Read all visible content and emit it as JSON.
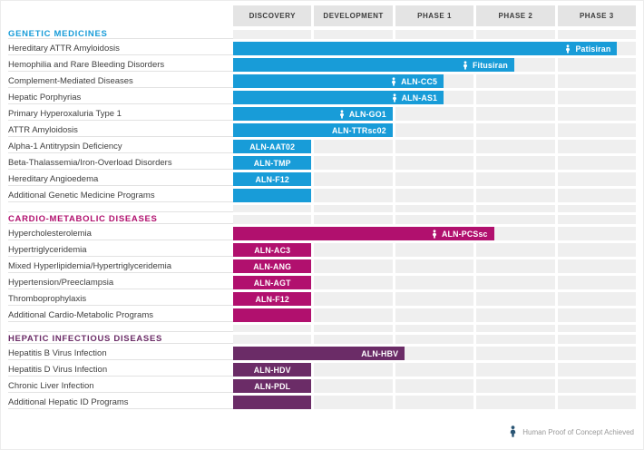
{
  "chart_data": {
    "type": "bar",
    "orientation": "horizontal",
    "title": "",
    "columns": [
      "DISCOVERY",
      "DEVELOPMENT",
      "PHASE 1",
      "PHASE 2",
      "PHASE 3"
    ],
    "legend": "Human Proof of Concept Achieved",
    "colors": {
      "genetic": "#189cd8",
      "cardio": "#b1106e",
      "hepatic": "#6b2c67",
      "legend_icon": "#2a5574",
      "header_bg": "#e4e4e4",
      "cell_bg": "#efefef"
    },
    "sections": [
      {
        "title": "GENETIC MEDICINES",
        "color": "#189cd8",
        "rows": [
          {
            "label": "Hereditary ATTR Amyloidosis",
            "program": "Patisiran",
            "phase_reached": "Phase 3",
            "end": 4.77,
            "poc": true
          },
          {
            "label": "Hemophilia and Rare Bleeding Disorders",
            "program": "Fitusiran",
            "phase_reached": "Phase 2",
            "end": 3.5,
            "poc": true
          },
          {
            "label": "Complement-Mediated Diseases",
            "program": "ALN-CC5",
            "phase_reached": "Phase 1",
            "end": 2.63,
            "poc": true
          },
          {
            "label": "Hepatic Porphyrias",
            "program": "ALN-AS1",
            "phase_reached": "Phase 1",
            "end": 2.63,
            "poc": true
          },
          {
            "label": "Primary Hyperoxaluria Type 1",
            "program": "ALN-GO1",
            "phase_reached": "Development",
            "end": 2.0,
            "poc": true
          },
          {
            "label": "ATTR Amyloidosis",
            "program": "ALN-TTRsc02",
            "phase_reached": "Development",
            "end": 2.0,
            "poc": false
          },
          {
            "label": "Alpha-1 Antitrypsin Deficiency",
            "program": "ALN-AAT02",
            "phase_reached": "Discovery",
            "end": 1.0,
            "poc": false,
            "center": true
          },
          {
            "label": "Beta-Thalassemia/Iron-Overload Disorders",
            "program": "ALN-TMP",
            "phase_reached": "Discovery",
            "end": 1.0,
            "poc": false,
            "center": true
          },
          {
            "label": "Hereditary Angioedema",
            "program": "ALN-F12",
            "phase_reached": "Discovery",
            "end": 1.0,
            "poc": false,
            "center": true
          },
          {
            "label": "Additional Genetic Medicine Programs",
            "program": "",
            "phase_reached": "Discovery",
            "end": 1.0,
            "poc": false
          }
        ]
      },
      {
        "title": "CARDIO-METABOLIC DISEASES",
        "color": "#b1106e",
        "rows": [
          {
            "label": "Hypercholesterolemia",
            "program": "ALN-PCSsc",
            "phase_reached": "Phase 2",
            "end": 3.25,
            "poc": true
          },
          {
            "label": "Hypertriglyceridemia",
            "program": "ALN-AC3",
            "phase_reached": "Discovery",
            "end": 1.0,
            "poc": false,
            "center": true
          },
          {
            "label": "Mixed Hyperlipidemia/Hypertriglyceridemia",
            "program": "ALN-ANG",
            "phase_reached": "Discovery",
            "end": 1.0,
            "poc": false,
            "center": true
          },
          {
            "label": "Hypertension/Preeclampsia",
            "program": "ALN-AGT",
            "phase_reached": "Discovery",
            "end": 1.0,
            "poc": false,
            "center": true
          },
          {
            "label": "Thromboprophylaxis",
            "program": "ALN-F12",
            "phase_reached": "Discovery",
            "end": 1.0,
            "poc": false,
            "center": true
          },
          {
            "label": "Additional Cardio-Metabolic Programs",
            "program": "",
            "phase_reached": "Discovery",
            "end": 1.0,
            "poc": false
          }
        ]
      },
      {
        "title": "HEPATIC INFECTIOUS DISEASES",
        "color": "#6b2c67",
        "rows": [
          {
            "label": "Hepatitis B Virus Infection",
            "program": "ALN-HBV",
            "phase_reached": "Phase 1",
            "end": 2.15,
            "poc": false
          },
          {
            "label": "Hepatitis D Virus Infection",
            "program": "ALN-HDV",
            "phase_reached": "Discovery",
            "end": 1.0,
            "poc": false,
            "center": true
          },
          {
            "label": "Chronic Liver Infection",
            "program": "ALN-PDL",
            "phase_reached": "Discovery",
            "end": 1.0,
            "poc": false,
            "center": true
          },
          {
            "label": "Additional Hepatic ID Programs",
            "program": "",
            "phase_reached": "Discovery",
            "end": 1.0,
            "poc": false
          }
        ]
      }
    ]
  }
}
